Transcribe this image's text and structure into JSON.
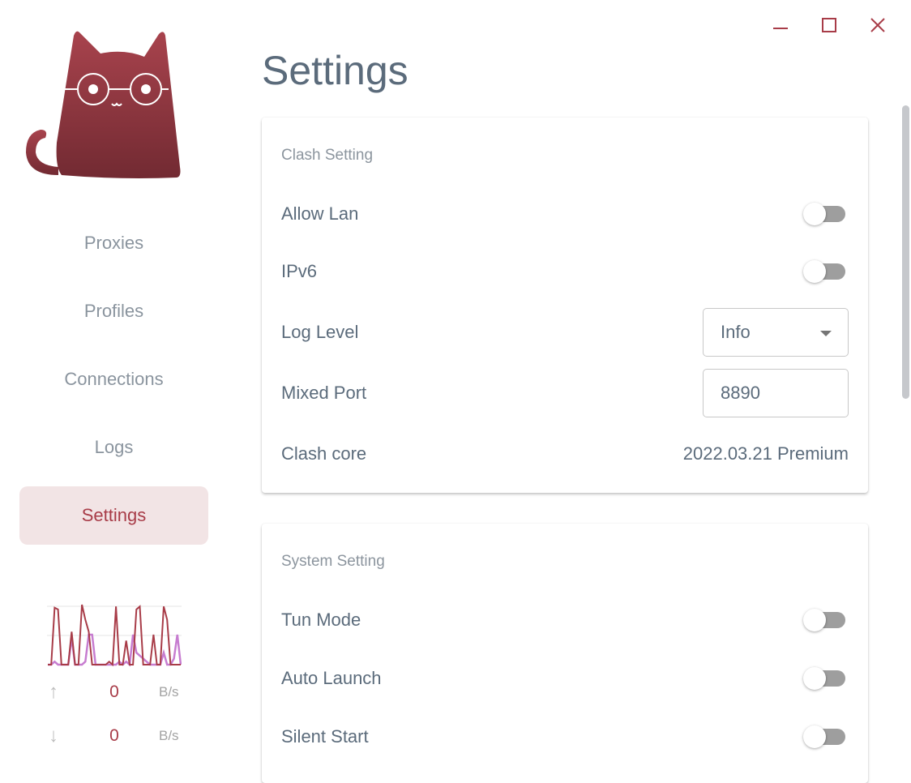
{
  "window": {
    "minimize_icon": "minus-icon",
    "maximize_icon": "square-icon",
    "close_icon": "close-icon"
  },
  "sidebar": {
    "items": [
      {
        "label": "Proxies"
      },
      {
        "label": "Profiles"
      },
      {
        "label": "Connections"
      },
      {
        "label": "Logs"
      },
      {
        "label": "Settings",
        "active": true
      }
    ],
    "traffic": {
      "upload_value": "0",
      "upload_unit": "B/s",
      "download_value": "0",
      "download_unit": "B/s",
      "graph": {
        "upload": [
          0,
          0,
          0.05,
          0,
          0,
          0,
          0,
          0.45,
          0,
          0,
          0,
          0.05,
          0.5,
          0.5,
          0,
          0,
          0,
          0,
          0,
          0,
          0,
          0.05,
          0,
          0.05,
          0,
          0.5,
          0.2,
          0.15,
          0.1,
          0.05,
          0,
          0,
          0,
          0,
          0.2,
          0,
          0,
          0.1,
          0.5,
          0
        ],
        "download": [
          0,
          0,
          0.95,
          0.92,
          0,
          0,
          0,
          0.55,
          0,
          0,
          1,
          0.75,
          0.55,
          0,
          0,
          0,
          0,
          0,
          0.05,
          0,
          0.97,
          0,
          0,
          0.4,
          0,
          0,
          0.92,
          0.97,
          0,
          0,
          0,
          0.5,
          0,
          0,
          0.97,
          0.75,
          0,
          0,
          0,
          0
        ],
        "colors": {
          "upload": "#c77dd0",
          "download": "#a83c48"
        }
      }
    }
  },
  "page": {
    "title": "Settings"
  },
  "clash_setting": {
    "title": "Clash Setting",
    "allow_lan": {
      "label": "Allow Lan",
      "on": false
    },
    "ipv6": {
      "label": "IPv6",
      "on": false
    },
    "log_level": {
      "label": "Log Level",
      "value": "Info"
    },
    "mixed_port": {
      "label": "Mixed Port",
      "value": "8890"
    },
    "clash_core": {
      "label": "Clash core",
      "value": "2022.03.21 Premium"
    }
  },
  "system_setting": {
    "title": "System Setting",
    "tun_mode": {
      "label": "Tun Mode",
      "on": false
    },
    "auto_launch": {
      "label": "Auto Launch",
      "on": false
    },
    "silent_start": {
      "label": "Silent Start",
      "on": false
    }
  },
  "colors": {
    "accent": "#a83c48",
    "active_bg": "#f2e4e5",
    "text": "#5b6b7b"
  }
}
